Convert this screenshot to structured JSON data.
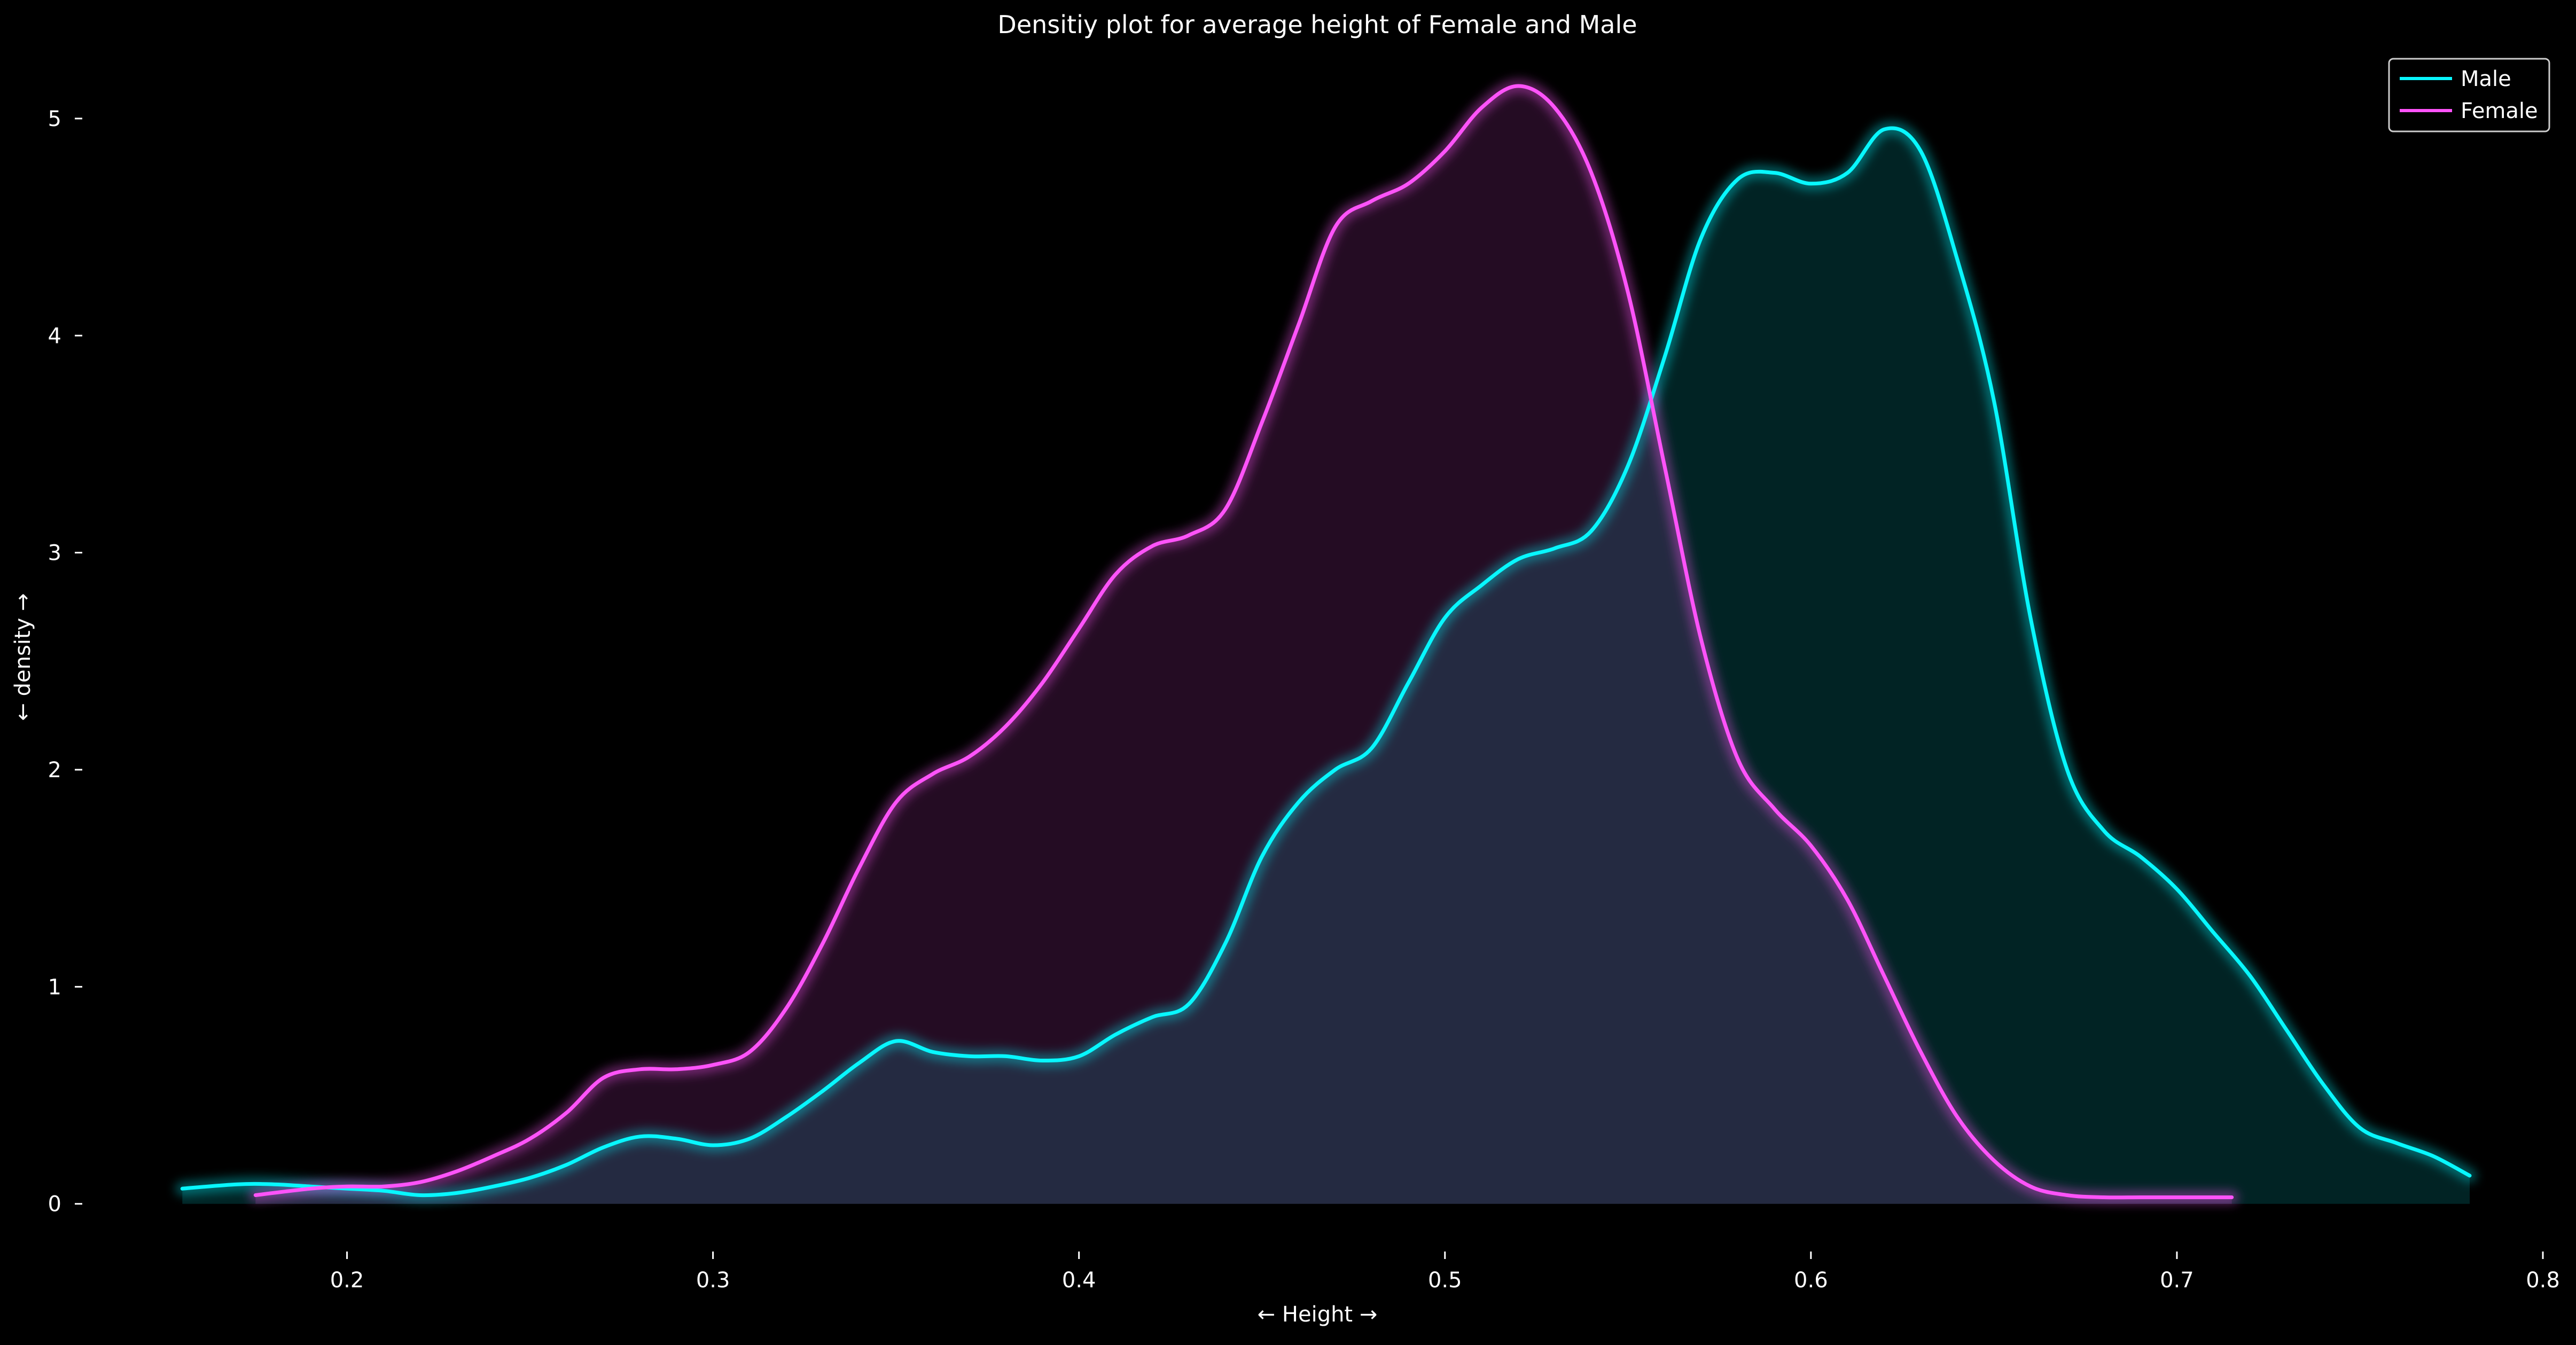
{
  "chart_data": {
    "type": "area",
    "title": "Densitiy plot for average height of Female and Male",
    "xlabel": "← Height →",
    "ylabel": "← density →",
    "xlim": [
      0.13,
      0.8
    ],
    "ylim": [
      -0.2,
      5.3
    ],
    "x_ticks": [
      0.2,
      0.3,
      0.4,
      0.5,
      0.6,
      0.7,
      0.8
    ],
    "x_tick_labels": [
      "0.2",
      "0.3",
      "0.4",
      "0.5",
      "0.6",
      "0.7",
      "0.8"
    ],
    "y_ticks": [
      0,
      1,
      2,
      3,
      4,
      5
    ],
    "y_tick_labels": [
      "0",
      "1",
      "2",
      "3",
      "4",
      "5"
    ],
    "grid": false,
    "legend_position": "top-right",
    "series": [
      {
        "name": "Male",
        "color": "#08F7FE",
        "fill_color": "#0A3A3A",
        "x": [
          0.155,
          0.17,
          0.18,
          0.19,
          0.2,
          0.21,
          0.22,
          0.23,
          0.24,
          0.25,
          0.26,
          0.27,
          0.28,
          0.29,
          0.3,
          0.31,
          0.32,
          0.33,
          0.34,
          0.35,
          0.36,
          0.37,
          0.38,
          0.39,
          0.4,
          0.41,
          0.42,
          0.43,
          0.44,
          0.45,
          0.46,
          0.47,
          0.48,
          0.49,
          0.5,
          0.51,
          0.52,
          0.53,
          0.54,
          0.55,
          0.56,
          0.57,
          0.58,
          0.59,
          0.6,
          0.61,
          0.62,
          0.63,
          0.64,
          0.65,
          0.66,
          0.67,
          0.68,
          0.69,
          0.7,
          0.71,
          0.72,
          0.73,
          0.74,
          0.75,
          0.76,
          0.77,
          0.78
        ],
        "y": [
          0.07,
          0.09,
          0.09,
          0.08,
          0.07,
          0.06,
          0.04,
          0.05,
          0.08,
          0.12,
          0.18,
          0.26,
          0.31,
          0.3,
          0.27,
          0.3,
          0.4,
          0.52,
          0.65,
          0.75,
          0.7,
          0.68,
          0.68,
          0.66,
          0.68,
          0.78,
          0.86,
          0.92,
          1.2,
          1.6,
          1.85,
          2.0,
          2.1,
          2.4,
          2.7,
          2.85,
          2.97,
          3.02,
          3.1,
          3.4,
          3.9,
          4.45,
          4.72,
          4.75,
          4.7,
          4.75,
          4.95,
          4.85,
          4.35,
          3.7,
          2.7,
          2.0,
          1.72,
          1.6,
          1.45,
          1.25,
          1.05,
          0.8,
          0.55,
          0.35,
          0.28,
          0.22,
          0.13
        ]
      },
      {
        "name": "Female",
        "color": "#FE53F9",
        "fill_color": "#3A0A3A",
        "x": [
          0.175,
          0.19,
          0.2,
          0.21,
          0.22,
          0.23,
          0.24,
          0.25,
          0.26,
          0.27,
          0.28,
          0.29,
          0.3,
          0.31,
          0.32,
          0.33,
          0.34,
          0.35,
          0.36,
          0.37,
          0.38,
          0.39,
          0.4,
          0.41,
          0.42,
          0.43,
          0.44,
          0.45,
          0.46,
          0.47,
          0.48,
          0.49,
          0.5,
          0.51,
          0.52,
          0.53,
          0.54,
          0.55,
          0.56,
          0.57,
          0.58,
          0.59,
          0.6,
          0.61,
          0.62,
          0.63,
          0.64,
          0.65,
          0.66,
          0.67,
          0.68,
          0.69,
          0.7,
          0.715
        ],
        "y": [
          0.04,
          0.07,
          0.08,
          0.08,
          0.1,
          0.15,
          0.22,
          0.3,
          0.42,
          0.58,
          0.62,
          0.62,
          0.64,
          0.7,
          0.9,
          1.2,
          1.55,
          1.85,
          1.98,
          2.06,
          2.2,
          2.4,
          2.65,
          2.9,
          3.03,
          3.08,
          3.2,
          3.6,
          4.05,
          4.5,
          4.62,
          4.7,
          4.85,
          5.05,
          5.15,
          5.05,
          4.75,
          4.2,
          3.4,
          2.6,
          2.05,
          1.82,
          1.65,
          1.4,
          1.05,
          0.7,
          0.4,
          0.2,
          0.08,
          0.04,
          0.03,
          0.03,
          0.03,
          0.03
        ]
      }
    ]
  }
}
